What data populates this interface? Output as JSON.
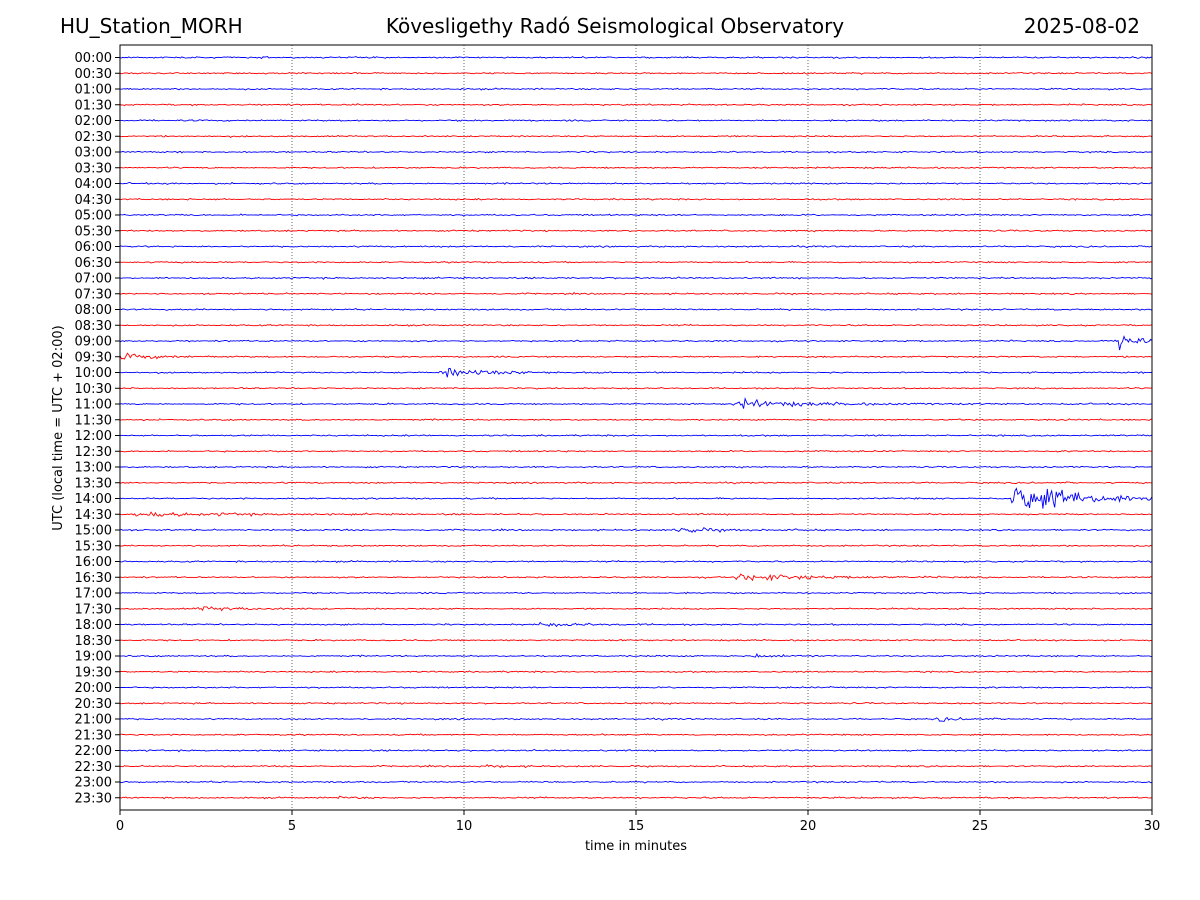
{
  "header": {
    "station": "HU_Station_MORH",
    "observatory": "Kövesligethy Radó Seismological Observatory",
    "date": "2025-08-02"
  },
  "chart_data": {
    "type": "line",
    "xlabel": "time in minutes",
    "ylabel": "UTC (local time = UTC + 02:00)",
    "xlim": [
      0,
      30
    ],
    "xticks": [
      0,
      5,
      10,
      15,
      20,
      25,
      30
    ],
    "grid": "vertical dotted lines at 5-minute intervals",
    "colors": {
      "even_rows": "#0000ff",
      "odd_rows": "#ff0000"
    },
    "rows": [
      "00:00",
      "00:30",
      "01:00",
      "01:30",
      "02:00",
      "02:30",
      "03:00",
      "03:30",
      "04:00",
      "04:30",
      "05:00",
      "05:30",
      "06:00",
      "06:30",
      "07:00",
      "07:30",
      "08:00",
      "08:30",
      "09:00",
      "09:30",
      "10:00",
      "10:30",
      "11:00",
      "11:30",
      "12:00",
      "12:30",
      "13:00",
      "13:30",
      "14:00",
      "14:30",
      "15:00",
      "15:30",
      "16:00",
      "16:30",
      "17:00",
      "17:30",
      "18:00",
      "18:30",
      "19:00",
      "19:30",
      "20:00",
      "20:30",
      "21:00",
      "21:30",
      "22:00",
      "22:30",
      "23:00",
      "23:30"
    ],
    "events": [
      {
        "row": "00:00",
        "start_min": 4.1,
        "amplitude": 0.3,
        "duration_min": 0.3
      },
      {
        "row": "00:30",
        "start_min": 6.8,
        "amplitude": 0.2,
        "duration_min": 0.6
      },
      {
        "row": "01:30",
        "start_min": 6.7,
        "amplitude": 0.25,
        "duration_min": 0.8
      },
      {
        "row": "09:00",
        "start_min": 29.0,
        "amplitude": 3.0,
        "duration_min": 1.0
      },
      {
        "row": "09:30",
        "start_min": 0.0,
        "amplitude": 0.7,
        "duration_min": 2.5
      },
      {
        "row": "10:00",
        "start_min": 9.3,
        "amplitude": 1.0,
        "duration_min": 3.5
      },
      {
        "row": "11:00",
        "start_min": 17.8,
        "amplitude": 0.9,
        "duration_min": 5.0
      },
      {
        "row": "14:00",
        "start_min": 25.9,
        "amplitude": 4.0,
        "duration_min": 4.5
      },
      {
        "row": "14:30",
        "start_min": 0.3,
        "amplitude": 0.5,
        "duration_min": 6.0
      },
      {
        "row": "15:00",
        "start_min": 16.1,
        "amplitude": 0.7,
        "duration_min": 2.5
      },
      {
        "row": "16:30",
        "start_min": 17.9,
        "amplitude": 0.9,
        "duration_min": 4.5
      },
      {
        "row": "17:30",
        "start_min": 2.2,
        "amplitude": 0.55,
        "duration_min": 2.5
      },
      {
        "row": "18:00",
        "start_min": 12.0,
        "amplitude": 0.45,
        "duration_min": 3.0
      },
      {
        "row": "19:00",
        "start_min": 18.4,
        "amplitude": 0.35,
        "duration_min": 2.0
      },
      {
        "row": "21:00",
        "start_min": 23.7,
        "amplitude": 0.4,
        "duration_min": 1.8
      },
      {
        "row": "22:30",
        "start_min": 10.6,
        "amplitude": 0.3,
        "duration_min": 1.5
      },
      {
        "row": "23:30",
        "start_min": 6.3,
        "amplitude": 0.25,
        "duration_min": 1.0
      }
    ]
  }
}
